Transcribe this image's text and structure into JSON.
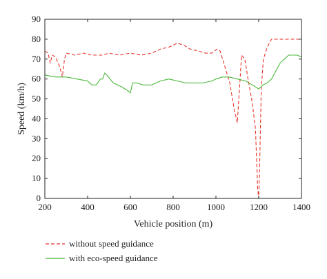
{
  "chart_data": {
    "type": "line",
    "title": "",
    "xlabel": "Vehicle position (m)",
    "ylabel": "Speed (km/h)",
    "xlim": [
      200,
      1400
    ],
    "ylim": [
      0,
      90
    ],
    "xticks": [
      200,
      400,
      600,
      800,
      1000,
      1200,
      1400
    ],
    "yticks": [
      0,
      10,
      20,
      30,
      40,
      50,
      60,
      70,
      80,
      90
    ],
    "grid": false,
    "legend_position": "below plot, left",
    "series": [
      {
        "name": "without speed guidance",
        "color": "#e8312a",
        "style": "dashed",
        "points": [
          [
            200,
            74
          ],
          [
            215,
            73
          ],
          [
            225,
            68
          ],
          [
            235,
            72
          ],
          [
            250,
            71
          ],
          [
            270,
            66
          ],
          [
            282,
            61
          ],
          [
            292,
            70
          ],
          [
            300,
            73
          ],
          [
            340,
            72
          ],
          [
            380,
            73
          ],
          [
            420,
            72
          ],
          [
            470,
            72
          ],
          [
            500,
            73
          ],
          [
            550,
            72
          ],
          [
            600,
            73
          ],
          [
            650,
            72
          ],
          [
            700,
            73
          ],
          [
            740,
            75
          ],
          [
            780,
            76
          ],
          [
            820,
            78
          ],
          [
            850,
            77
          ],
          [
            880,
            75
          ],
          [
            920,
            74
          ],
          [
            950,
            73
          ],
          [
            980,
            73
          ],
          [
            1005,
            75
          ],
          [
            1020,
            74
          ],
          [
            1045,
            65
          ],
          [
            1065,
            58
          ],
          [
            1085,
            45
          ],
          [
            1100,
            38
          ],
          [
            1110,
            55
          ],
          [
            1120,
            72
          ],
          [
            1135,
            70
          ],
          [
            1150,
            60
          ],
          [
            1170,
            48
          ],
          [
            1185,
            35
          ],
          [
            1195,
            5
          ],
          [
            1200,
            0
          ],
          [
            1205,
            20
          ],
          [
            1212,
            55
          ],
          [
            1222,
            70
          ],
          [
            1240,
            76
          ],
          [
            1260,
            80
          ],
          [
            1300,
            80
          ],
          [
            1350,
            80
          ],
          [
            1400,
            80
          ]
        ]
      },
      {
        "name": "with eco-speed guidance",
        "color": "#4ab83a",
        "style": "solid",
        "points": [
          [
            200,
            62
          ],
          [
            250,
            61
          ],
          [
            300,
            61
          ],
          [
            350,
            60
          ],
          [
            400,
            59
          ],
          [
            420,
            57
          ],
          [
            440,
            57
          ],
          [
            460,
            60
          ],
          [
            470,
            60
          ],
          [
            480,
            63
          ],
          [
            490,
            62
          ],
          [
            520,
            58
          ],
          [
            560,
            56
          ],
          [
            590,
            54
          ],
          [
            600,
            53
          ],
          [
            610,
            58
          ],
          [
            630,
            58
          ],
          [
            660,
            57
          ],
          [
            700,
            57
          ],
          [
            740,
            59
          ],
          [
            780,
            60
          ],
          [
            820,
            59
          ],
          [
            860,
            58
          ],
          [
            900,
            58
          ],
          [
            940,
            58
          ],
          [
            980,
            59
          ],
          [
            1000,
            60
          ],
          [
            1030,
            61
          ],
          [
            1060,
            61
          ],
          [
            1100,
            60
          ],
          [
            1140,
            59
          ],
          [
            1170,
            57
          ],
          [
            1200,
            55
          ],
          [
            1220,
            57
          ],
          [
            1240,
            58
          ],
          [
            1260,
            60
          ],
          [
            1280,
            64
          ],
          [
            1300,
            68
          ],
          [
            1320,
            70
          ],
          [
            1340,
            72
          ],
          [
            1360,
            72
          ],
          [
            1380,
            72
          ],
          [
            1400,
            71
          ]
        ]
      }
    ]
  }
}
